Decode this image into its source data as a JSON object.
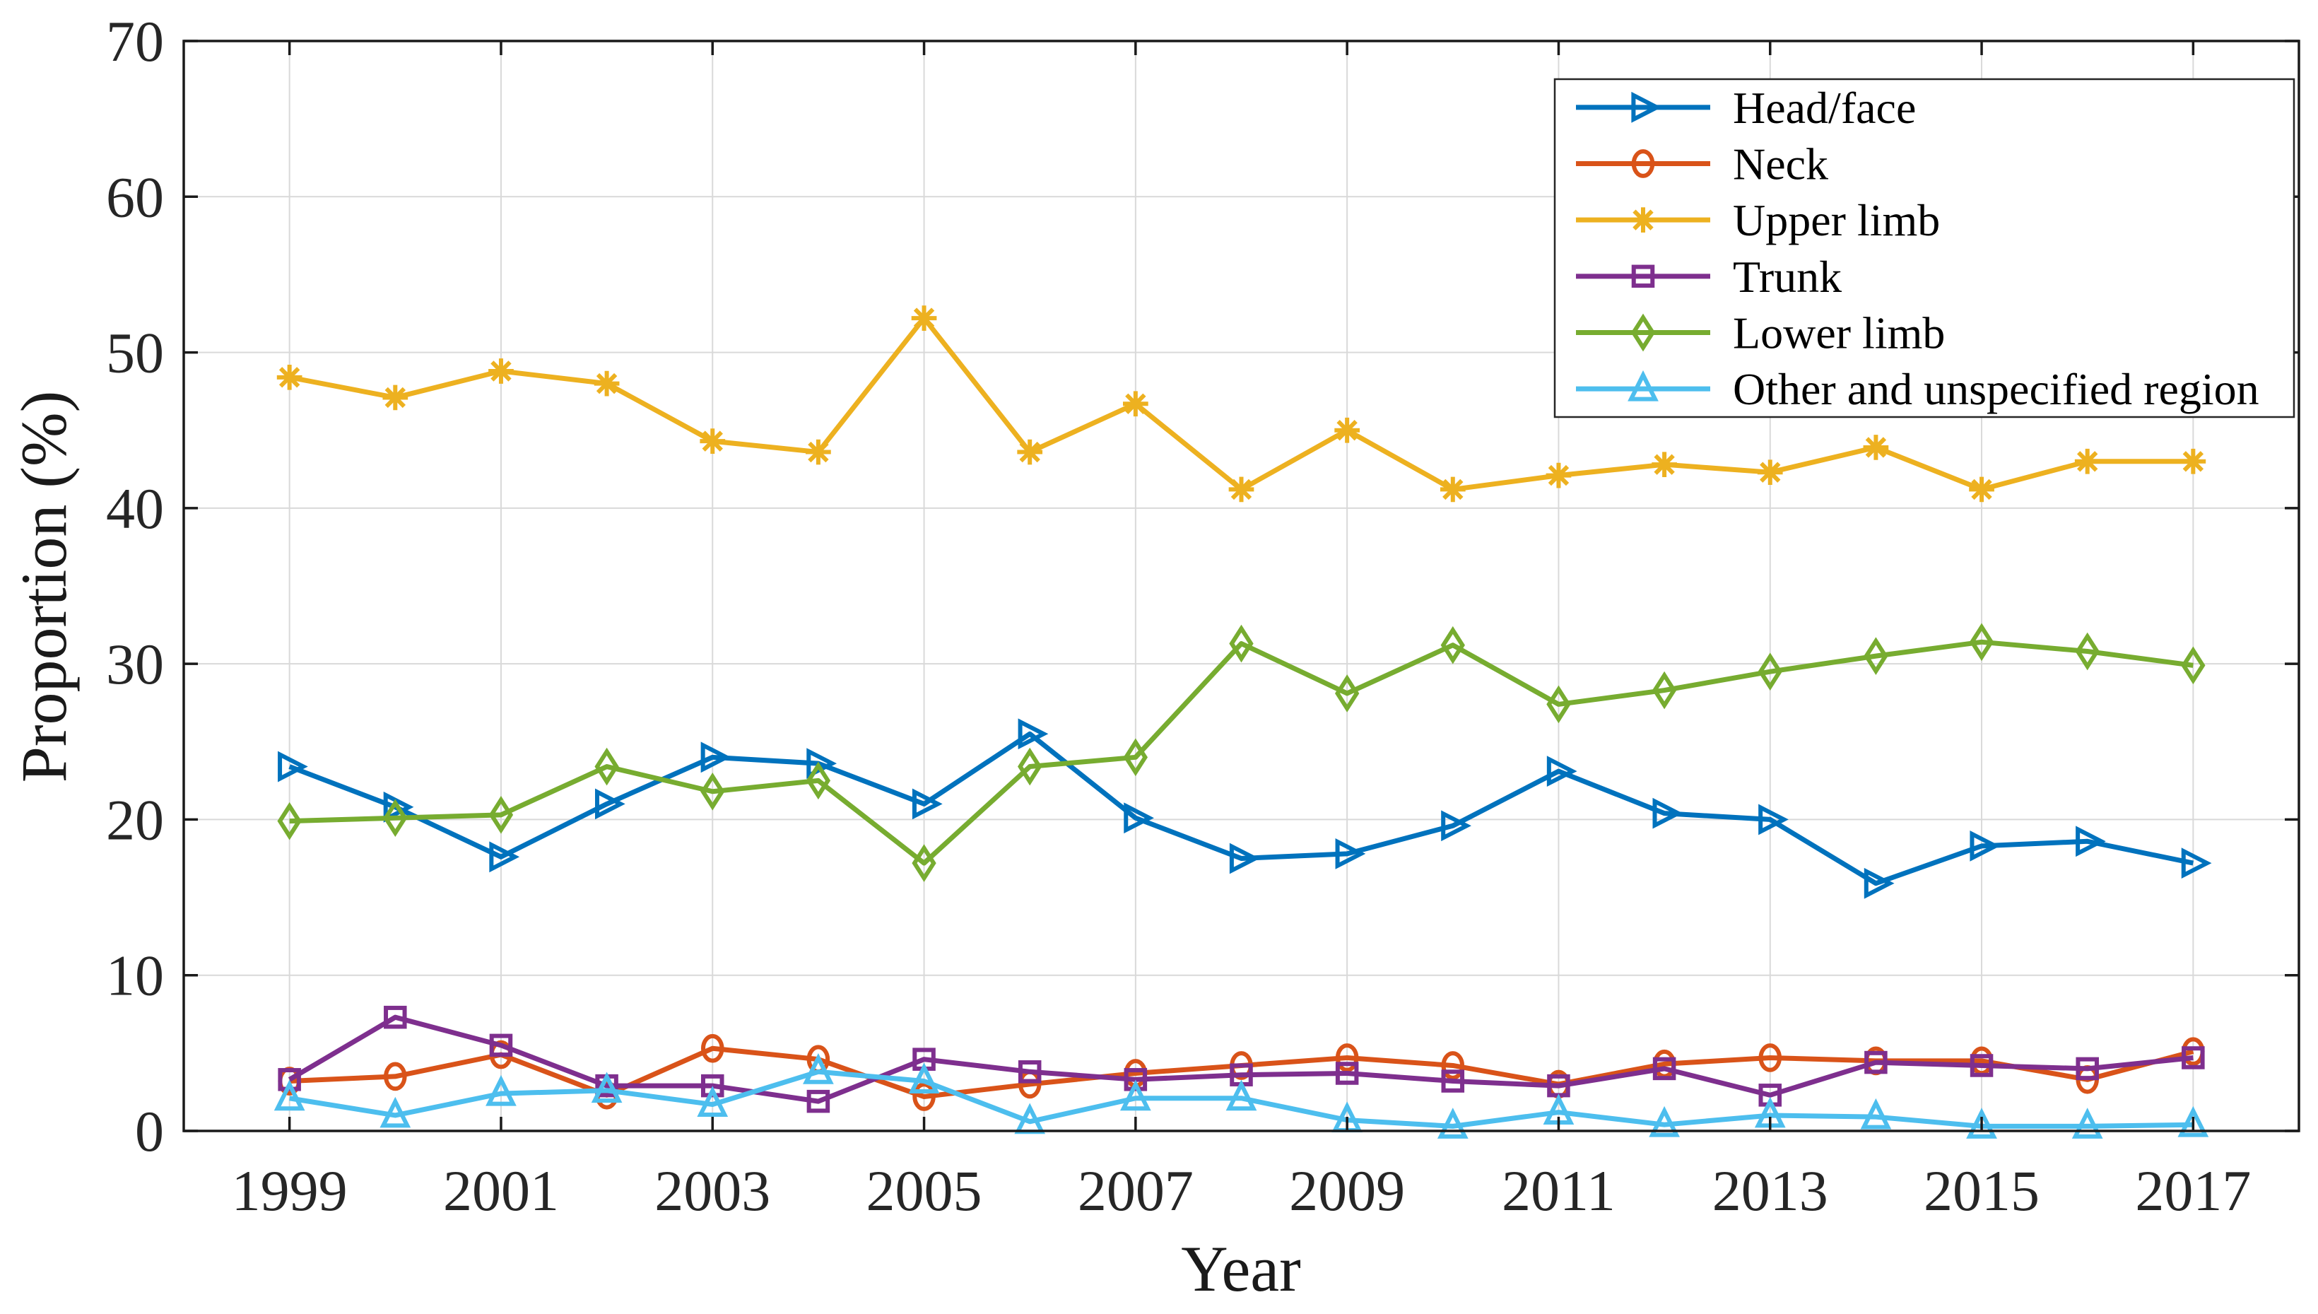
{
  "chart_data": {
    "type": "line",
    "title": "",
    "xlabel": "Year",
    "ylabel": "Proportion (%)",
    "x": [
      1999,
      2000,
      2001,
      2002,
      2003,
      2004,
      2005,
      2006,
      2007,
      2008,
      2009,
      2010,
      2011,
      2012,
      2013,
      2014,
      2015,
      2016,
      2017
    ],
    "xlim": [
      1998,
      2018
    ],
    "ylim": [
      0,
      70
    ],
    "xticks": [
      1999,
      2001,
      2003,
      2005,
      2007,
      2009,
      2011,
      2013,
      2015,
      2017
    ],
    "yticks": [
      0,
      10,
      20,
      30,
      40,
      50,
      60,
      70
    ],
    "grid": true,
    "legend_position": "top-right",
    "series": [
      {
        "name": "Head/face",
        "color": "#0072BD",
        "marker": "triangle-right",
        "values": [
          23.4,
          20.8,
          17.6,
          21.0,
          24.0,
          23.6,
          21.0,
          25.5,
          20.1,
          17.5,
          17.8,
          19.6,
          23.1,
          20.4,
          20.0,
          15.9,
          18.3,
          18.6,
          17.2
        ]
      },
      {
        "name": "Neck",
        "color": "#D95319",
        "marker": "circle",
        "values": [
          3.2,
          3.5,
          4.9,
          2.3,
          5.3,
          4.6,
          2.2,
          3.0,
          3.7,
          4.2,
          4.7,
          4.2,
          3.0,
          4.3,
          4.7,
          4.5,
          4.5,
          3.3,
          5.1
        ]
      },
      {
        "name": "Upper limb",
        "color": "#EDB120",
        "marker": "asterisk",
        "values": [
          48.4,
          47.1,
          48.8,
          48.0,
          44.3,
          43.6,
          52.2,
          43.6,
          46.7,
          41.2,
          45.0,
          41.2,
          42.1,
          42.8,
          42.3,
          43.9,
          41.2,
          43.0,
          43.0
        ]
      },
      {
        "name": "Trunk",
        "color": "#7E2F8E",
        "marker": "square",
        "values": [
          3.3,
          7.3,
          5.5,
          2.9,
          2.9,
          1.9,
          4.6,
          3.8,
          3.3,
          3.6,
          3.7,
          3.2,
          2.9,
          4.0,
          2.3,
          4.4,
          4.2,
          4.0,
          4.7
        ]
      },
      {
        "name": "Lower limb",
        "color": "#77AC30",
        "marker": "diamond",
        "values": [
          19.9,
          20.1,
          20.3,
          23.4,
          21.8,
          22.5,
          17.2,
          23.4,
          24.0,
          31.3,
          28.1,
          31.2,
          27.4,
          28.3,
          29.5,
          30.5,
          31.4,
          30.8,
          29.9
        ]
      },
      {
        "name": "Other and unspecified region",
        "color": "#4DBEEE",
        "marker": "triangle-up",
        "values": [
          2.1,
          1.0,
          2.4,
          2.6,
          1.7,
          3.8,
          3.2,
          0.6,
          2.1,
          2.1,
          0.7,
          0.3,
          1.2,
          0.4,
          1.0,
          0.9,
          0.3,
          0.3,
          0.4
        ]
      }
    ],
    "styles": {
      "axis_color": "#1a1a1a",
      "tick_label_color": "#262626",
      "grid_color": "#d9d9d9",
      "background": "#ffffff"
    }
  }
}
